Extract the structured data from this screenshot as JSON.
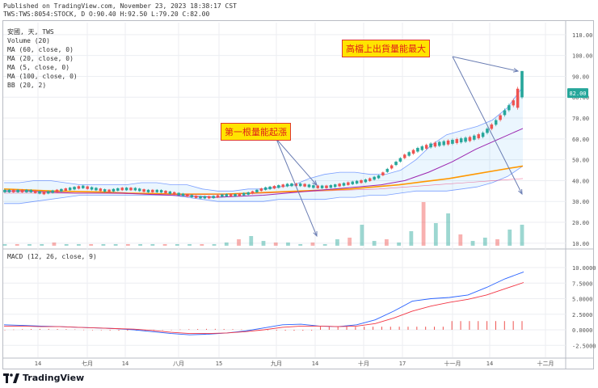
{
  "header": {
    "line1": "Published on TradingView.com, November 23, 2023 18:38:17 CST",
    "line2": "TWS:TWS:8054:STOCK, D O:90.40 H:92.50 L:79.20 C:82.00"
  },
  "legend": {
    "symbol": "安國, 天, TWS",
    "volume": "Volume (20)",
    "ma60": "MA (60, close, 0)",
    "ma20": "MA (20, close, 0)",
    "ma5": "MA (5, close, 0)",
    "ma100": "MA (100, close, 0)",
    "bb": "BB (20, 2)",
    "macd": "MACD (12, 26, close, 9)"
  },
  "annotations": {
    "top": "高檔上出貨量能最大",
    "mid": "第一根量能起漲"
  },
  "last_price_label": "82.00",
  "brand": "TradingView",
  "colors": {
    "up": "#26a69a",
    "down": "#ef5350",
    "ma20": "#9c27b0",
    "ma60": "#ff9800",
    "bb": "#2962ff",
    "macd": "#2962ff",
    "signal": "#f23645",
    "hist": "#ef5350",
    "note_bg": "#ffe400",
    "note_text": "#e0201a"
  },
  "chart_data": [
    {
      "type": "candlestick",
      "ylim": [
        8,
        113
      ],
      "y_ticks": [
        "110.00",
        "100.00",
        "90.00",
        "80.00",
        "70.00",
        "60.00",
        "50.00",
        "40.00",
        "30.00",
        "20.00",
        "10.00"
      ],
      "x_tick_labels": [
        "14",
        "七月",
        "14",
        "八月",
        "15",
        "九月",
        "14",
        "十月",
        "17",
        "十一月",
        "14",
        "十二月"
      ],
      "close_series_approx": [
        35,
        35,
        35,
        34,
        35,
        36,
        37,
        36,
        35,
        36,
        36,
        35,
        35,
        34,
        33,
        32,
        32,
        33,
        33,
        34,
        36,
        37,
        38,
        38,
        37,
        37,
        38,
        39,
        40,
        42,
        47,
        52,
        55,
        57,
        58,
        59,
        60,
        62,
        68,
        75,
        82
      ],
      "bb_upper_approx": [
        39,
        39,
        40,
        40,
        39,
        38,
        38,
        38,
        38,
        39,
        39,
        38,
        38,
        36,
        35,
        35,
        36,
        36,
        37,
        38,
        41,
        43,
        44,
        44,
        43,
        43,
        45,
        50,
        57,
        62,
        64,
        66,
        69,
        75,
        85
      ],
      "bb_lower_approx": [
        29,
        29,
        30,
        31,
        32,
        33,
        33,
        33,
        33,
        33,
        33,
        33,
        32,
        31,
        30,
        30,
        30,
        30,
        31,
        31,
        31,
        31,
        32,
        32,
        33,
        33,
        34,
        35,
        35,
        35,
        36,
        37,
        39,
        42,
        47
      ],
      "volume": {
        "type": "bar",
        "y_ticks": [
          "20.00",
          "10.00"
        ],
        "values_approx": [
          1,
          1,
          1,
          1,
          2,
          1,
          1,
          1,
          1,
          1,
          1,
          1,
          1,
          1,
          1,
          1,
          1,
          1,
          2,
          4,
          6,
          3,
          2,
          2,
          1,
          2,
          1,
          4,
          5,
          13,
          3,
          4,
          2,
          9,
          27,
          14,
          20,
          7,
          3,
          5,
          4,
          10,
          13
        ]
      }
    },
    {
      "type": "line",
      "title": "MACD (12, 26, close, 9)",
      "ylim": [
        -3.5,
        11
      ],
      "y_ticks": [
        "10.0000",
        "7.5000",
        "5.0000",
        "2.5000",
        "0.0000",
        "-2.5000"
      ],
      "series": [
        {
          "values": [
            0.8,
            0.7,
            0.6,
            0.5,
            0.4,
            0.3,
            0.2,
            0.0,
            -0.3,
            -0.6,
            -0.8,
            -0.7,
            -0.5,
            -0.2,
            0.3,
            0.8,
            0.9,
            0.6,
            0.5,
            0.8,
            1.6,
            3.0,
            4.6,
            5.0,
            5.2,
            5.6,
            6.8,
            8.2,
            9.3
          ]
        },
        {
          "values": [
            0.6,
            0.6,
            0.5,
            0.5,
            0.4,
            0.3,
            0.2,
            0.1,
            -0.1,
            -0.4,
            -0.6,
            -0.6,
            -0.5,
            -0.3,
            0.0,
            0.4,
            0.6,
            0.6,
            0.5,
            0.6,
            1.0,
            1.9,
            3.0,
            3.8,
            4.4,
            4.9,
            5.6,
            6.6,
            7.6
          ]
        }
      ]
    }
  ]
}
